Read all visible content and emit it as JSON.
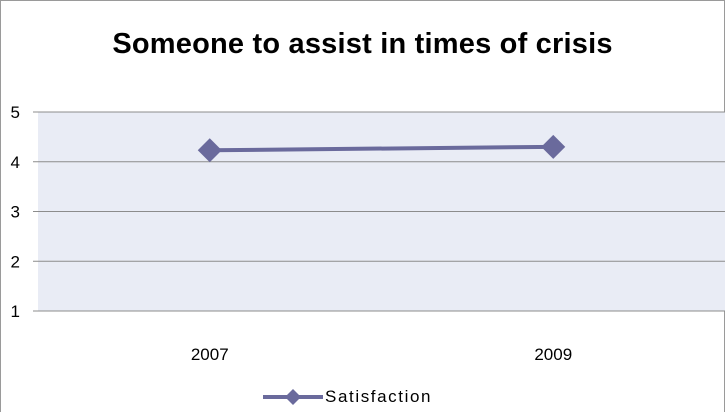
{
  "chart_data": {
    "type": "line",
    "title": "Someone to assist in times of crisis",
    "categories": [
      "2007",
      "2009"
    ],
    "series": [
      {
        "name": "Satisfaction",
        "values": [
          4.23,
          4.3
        ]
      }
    ],
    "ylim": [
      1,
      5
    ],
    "yticks": [
      "1",
      "2",
      "3",
      "4",
      "5"
    ],
    "grid": true,
    "legend": "bottom",
    "colors": {
      "series": "#6a6a9c",
      "plot_area": "#e9ecf5",
      "gridline": "#8c8c8c"
    }
  }
}
